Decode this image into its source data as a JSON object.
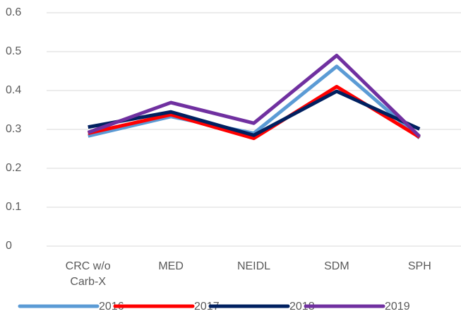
{
  "chart_data": {
    "type": "line",
    "categories": [
      "CRC w/o Carb-X",
      "MED",
      "NEIDL",
      "SDM",
      "SPH"
    ],
    "series": [
      {
        "name": "2016",
        "color": "#5b9bd5",
        "values": [
          0.283,
          0.333,
          0.29,
          0.462,
          0.278
        ]
      },
      {
        "name": "2017",
        "color": "#ff0000",
        "values": [
          0.29,
          0.338,
          0.277,
          0.41,
          0.28
        ]
      },
      {
        "name": "2018",
        "color": "#002060",
        "values": [
          0.306,
          0.345,
          0.285,
          0.398,
          0.301
        ]
      },
      {
        "name": "2019",
        "color": "#7030a0",
        "values": [
          0.292,
          0.369,
          0.316,
          0.49,
          0.282
        ]
      }
    ],
    "ylim": [
      0,
      0.6
    ],
    "yticks": [
      0,
      0.1,
      0.2,
      0.3,
      0.4,
      0.5,
      0.6
    ],
    "grid": true,
    "legend": "bottom"
  }
}
